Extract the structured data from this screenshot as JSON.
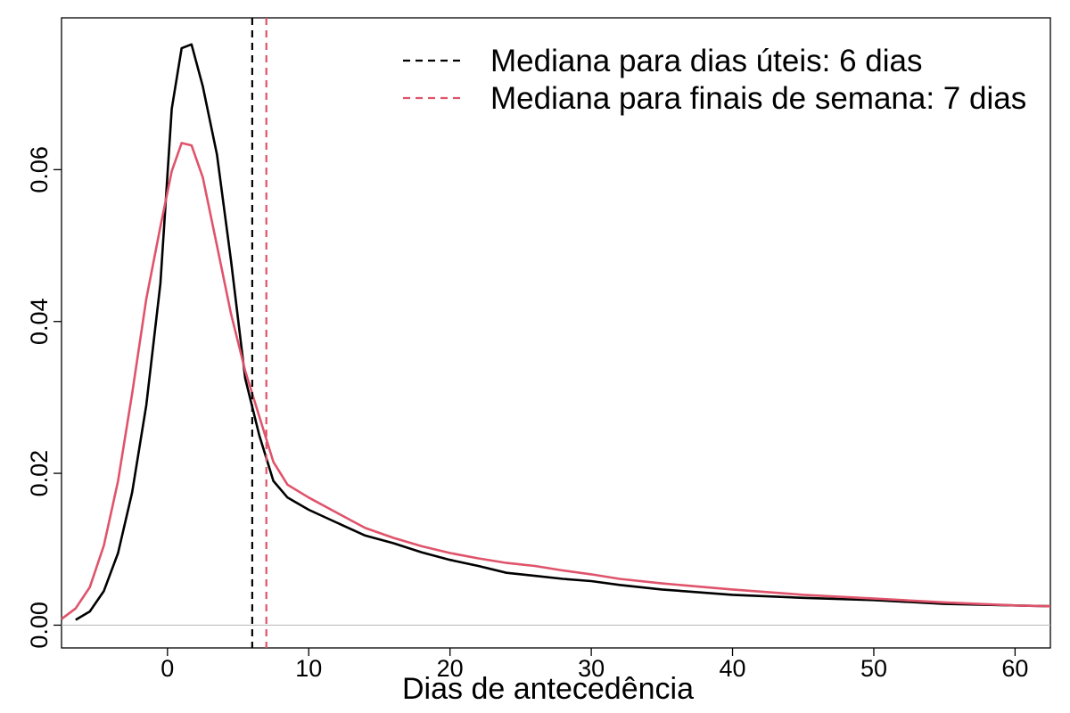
{
  "chart_data": {
    "type": "line",
    "title": "",
    "xlabel": "Dias de antecedência",
    "ylabel": "",
    "xlim": [
      -7.5,
      62.5
    ],
    "ylim": [
      -0.003,
      0.08
    ],
    "x_ticks": [
      0,
      10,
      20,
      30,
      40,
      50,
      60
    ],
    "y_ticks": [
      0.0,
      0.02,
      0.04,
      0.06
    ],
    "x_tick_labels": [
      "0",
      "10",
      "20",
      "30",
      "40",
      "50",
      "60"
    ],
    "y_tick_labels": [
      "0.00",
      "0.02",
      "0.04",
      "0.06"
    ],
    "grid": false,
    "legend_position": "top-right",
    "zero_line": true,
    "colors": {
      "weekday": "#000000",
      "weekend": "#DF536B",
      "zero_line": "#BEBEBE"
    },
    "series": [
      {
        "key": "weekday",
        "x": [
          -6.5,
          -5.5,
          -4.5,
          -3.5,
          -2.5,
          -1.5,
          -0.5,
          0.3,
          1.0,
          1.7,
          2.5,
          3.5,
          4.5,
          5.5,
          6.5,
          7.5,
          8.5,
          10,
          12,
          14,
          16,
          18,
          20,
          22,
          24,
          26,
          28,
          30,
          32,
          35,
          40,
          45,
          50,
          55,
          60,
          62.5
        ],
        "y": [
          0.0007,
          0.0018,
          0.0045,
          0.0095,
          0.0175,
          0.029,
          0.045,
          0.068,
          0.076,
          0.0765,
          0.071,
          0.062,
          0.048,
          0.0325,
          0.025,
          0.019,
          0.0168,
          0.0152,
          0.0135,
          0.0118,
          0.0108,
          0.0096,
          0.0086,
          0.0078,
          0.0069,
          0.0065,
          0.0061,
          0.0058,
          0.0053,
          0.0047,
          0.004,
          0.0036,
          0.0033,
          0.0028,
          0.0026,
          0.0025
        ]
      },
      {
        "key": "weekend",
        "x": [
          -7.5,
          -6.5,
          -5.5,
          -4.5,
          -3.5,
          -2.5,
          -1.5,
          -0.5,
          0.3,
          1.0,
          1.7,
          2.5,
          3.5,
          4.5,
          5.5,
          6.5,
          7.5,
          8.5,
          10,
          12,
          14,
          16,
          18,
          20,
          22,
          24,
          26,
          28,
          30,
          32,
          35,
          40,
          45,
          50,
          55,
          60,
          62.5
        ],
        "y": [
          0.0008,
          0.0022,
          0.005,
          0.0105,
          0.019,
          0.0305,
          0.043,
          0.0525,
          0.0598,
          0.0635,
          0.0632,
          0.059,
          0.05,
          0.041,
          0.0335,
          0.0275,
          0.0215,
          0.0185,
          0.0168,
          0.0148,
          0.0128,
          0.0115,
          0.0104,
          0.0095,
          0.0088,
          0.0082,
          0.0078,
          0.0072,
          0.0067,
          0.0061,
          0.0055,
          0.0047,
          0.004,
          0.0035,
          0.003,
          0.0026,
          0.0025
        ]
      }
    ],
    "vlines": [
      {
        "key": "weekday",
        "x": 6,
        "label": "Mediana para dias úteis: 6 dias"
      },
      {
        "key": "weekend",
        "x": 7,
        "label": "Mediana para finais de semana: 7 dias"
      }
    ]
  }
}
